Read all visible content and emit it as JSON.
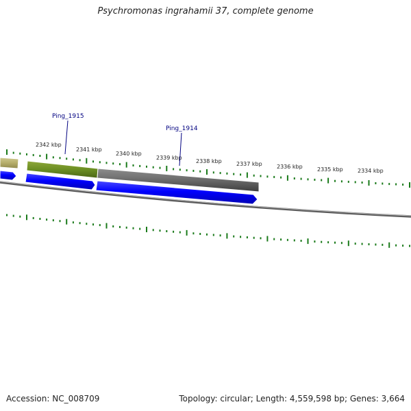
{
  "title": "Psychromonas ingrahamii 37, complete genome",
  "footer": {
    "accession": "Accession: NC_008709",
    "summary": "Topology: circular; Length: 4,559,598 bp; Genes: 3,664"
  },
  "scale_labels": [
    "2342 kbp",
    "2341 kbp",
    "2340 kbp",
    "2339 kbp",
    "2338 kbp",
    "2337 kbp",
    "2336 kbp",
    "2335 kbp",
    "2334 kbp"
  ],
  "gene_labels": [
    "Ping_1915",
    "Ping_1914"
  ],
  "colors": {
    "background": "#ffffff",
    "tick_green": "#1a7a1a",
    "feature_blue": "#0000ff",
    "feature_olive": "#6b8e23",
    "feature_tan": "#b5ad6a",
    "feature_gray": "#6e6e6e",
    "backbone_gray": "#7a7a7a",
    "label_navy": "#000080",
    "text": "#222222"
  }
}
